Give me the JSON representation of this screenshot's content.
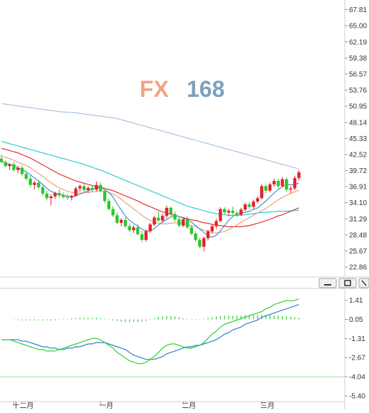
{
  "watermark": {
    "brand_letters": "FX",
    "brand_digits": "168"
  },
  "chart_data": [
    {
      "type": "candlestick",
      "panel": "price",
      "yaxis_side": "right",
      "ylim": [
        21.5,
        69.0
      ],
      "yticks": [
        "67.81",
        "65.00",
        "62.19",
        "59.38",
        "56.57",
        "53.76",
        "50.95",
        "48.14",
        "45.33",
        "42.52",
        "39.72",
        "36.91",
        "34.10",
        "31.29",
        "28.48",
        "25.67",
        "22.86"
      ],
      "colors": {
        "up": "#e8202a",
        "down": "#2ec531",
        "ma5": "#3f88c8",
        "ma10": "#e0a070",
        "ma20": "#e02020",
        "ma60": "#20c8c8",
        "ma120": "#a0c0e0"
      },
      "candles": [
        [
          41.8,
          42.5,
          41.0,
          41.2
        ],
        [
          41.2,
          41.6,
          40.3,
          40.5
        ],
        [
          40.5,
          41.0,
          39.8,
          40.8
        ],
        [
          40.8,
          41.2,
          39.5,
          39.8
        ],
        [
          39.8,
          40.5,
          39.2,
          40.2
        ],
        [
          40.2,
          40.6,
          38.8,
          39.1
        ],
        [
          39.1,
          39.6,
          38.0,
          38.3
        ],
        [
          38.3,
          38.9,
          36.8,
          37.2
        ],
        [
          37.2,
          37.9,
          36.4,
          37.6
        ],
        [
          37.6,
          38.0,
          36.5,
          36.8
        ],
        [
          36.8,
          37.3,
          35.3,
          35.7
        ],
        [
          35.7,
          36.2,
          34.5,
          34.9
        ],
        [
          34.9,
          35.6,
          33.6,
          35.2
        ],
        [
          35.2,
          36.0,
          34.8,
          35.8
        ],
        [
          35.8,
          36.4,
          35.0,
          35.4
        ],
        [
          35.4,
          35.9,
          34.8,
          35.1
        ],
        [
          35.1,
          35.6,
          34.6,
          35.0
        ],
        [
          35.0,
          35.5,
          34.5,
          35.3
        ],
        [
          35.3,
          36.9,
          35.1,
          36.6
        ],
        [
          36.6,
          37.3,
          36.1,
          37.0
        ],
        [
          37.0,
          37.6,
          36.0,
          36.3
        ],
        [
          36.3,
          37.0,
          35.8,
          36.7
        ],
        [
          36.7,
          37.2,
          36.0,
          36.4
        ],
        [
          36.4,
          37.8,
          36.1,
          37.2
        ],
        [
          37.2,
          37.6,
          35.9,
          36.1
        ],
        [
          36.1,
          36.5,
          34.0,
          34.4
        ],
        [
          34.4,
          34.8,
          32.7,
          33.0
        ],
        [
          33.0,
          33.5,
          31.6,
          31.9
        ],
        [
          31.9,
          32.4,
          30.3,
          30.6
        ],
        [
          30.6,
          31.4,
          30.0,
          31.1
        ],
        [
          31.1,
          31.6,
          29.7,
          30.0
        ],
        [
          30.0,
          30.5,
          29.0,
          29.3
        ],
        [
          29.3,
          30.2,
          28.8,
          29.8
        ],
        [
          29.8,
          30.3,
          28.3,
          28.6
        ],
        [
          28.6,
          29.2,
          27.2,
          27.6
        ],
        [
          27.6,
          29.5,
          27.3,
          29.1
        ],
        [
          29.1,
          30.6,
          28.8,
          30.3
        ],
        [
          30.3,
          31.8,
          30.0,
          31.5
        ],
        [
          31.5,
          32.6,
          30.8,
          31.0
        ],
        [
          31.0,
          32.2,
          30.6,
          31.8
        ],
        [
          31.8,
          33.6,
          31.4,
          33.2
        ],
        [
          33.2,
          33.5,
          31.8,
          32.1
        ],
        [
          32.1,
          32.6,
          30.8,
          31.2
        ],
        [
          31.2,
          31.6,
          29.8,
          30.1
        ],
        [
          30.1,
          31.5,
          29.8,
          31.2
        ],
        [
          31.2,
          31.7,
          29.5,
          29.8
        ],
        [
          29.8,
          30.2,
          28.4,
          28.7
        ],
        [
          28.7,
          29.1,
          27.3,
          27.6
        ],
        [
          27.6,
          28.0,
          26.1,
          26.4
        ],
        [
          26.4,
          28.2,
          25.6,
          27.9
        ],
        [
          27.9,
          29.4,
          27.5,
          29.1
        ],
        [
          29.1,
          30.3,
          28.7,
          30.0
        ],
        [
          30.0,
          31.3,
          29.5,
          30.9
        ],
        [
          30.9,
          33.3,
          30.7,
          33.0
        ],
        [
          33.0,
          33.3,
          32.1,
          32.4
        ],
        [
          32.4,
          33.0,
          31.7,
          32.7
        ],
        [
          32.7,
          33.4,
          32.0,
          32.3
        ],
        [
          32.3,
          32.7,
          31.6,
          32.0
        ],
        [
          32.0,
          33.2,
          31.8,
          32.9
        ],
        [
          32.9,
          34.1,
          32.6,
          33.8
        ],
        [
          33.8,
          34.2,
          33.0,
          33.4
        ],
        [
          33.4,
          34.6,
          33.0,
          34.3
        ],
        [
          34.3,
          35.2,
          34.0,
          34.9
        ],
        [
          34.9,
          37.3,
          34.7,
          37.0
        ],
        [
          37.0,
          37.3,
          35.8,
          36.2
        ],
        [
          36.2,
          37.6,
          35.9,
          37.3
        ],
        [
          37.3,
          38.3,
          36.9,
          37.9
        ],
        [
          37.9,
          38.3,
          36.6,
          37.0
        ],
        [
          37.0,
          38.6,
          36.8,
          38.2
        ],
        [
          38.2,
          38.5,
          36.0,
          36.4
        ],
        [
          36.4,
          37.0,
          35.7,
          36.6
        ],
        [
          36.6,
          38.8,
          36.3,
          38.4
        ],
        [
          38.4,
          39.8,
          38.0,
          39.4
        ]
      ],
      "ma_lines": {
        "ma5": [
          41.4,
          41.0,
          40.8,
          40.6,
          40.2,
          39.9,
          39.5,
          39.0,
          38.4,
          37.9,
          37.3,
          36.6,
          36.1,
          35.8,
          35.5,
          35.4,
          35.2,
          35.1,
          35.3,
          35.6,
          35.9,
          36.2,
          36.4,
          36.7,
          36.8,
          36.4,
          35.9,
          35.1,
          33.9,
          32.8,
          31.8,
          31.0,
          30.5,
          30.0,
          29.5,
          29.1,
          29.2,
          29.6,
          30.2,
          30.7,
          31.2,
          31.6,
          31.9,
          31.7,
          31.4,
          31.1,
          30.7,
          30.1,
          29.5,
          28.9,
          28.3,
          28.1,
          28.4,
          29.2,
          30.1,
          31.0,
          31.7,
          32.1,
          32.3,
          32.4,
          32.6,
          32.9,
          33.2,
          33.8,
          34.4,
          35.1,
          35.8,
          36.4,
          36.9,
          37.3,
          37.2,
          37.3,
          37.5
        ],
        "ma10": [
          42.2,
          42.0,
          41.8,
          41.5,
          41.2,
          40.9,
          40.6,
          40.2,
          39.7,
          39.2,
          38.7,
          38.1,
          37.6,
          37.1,
          36.7,
          36.4,
          36.1,
          35.9,
          35.8,
          35.8,
          35.8,
          35.9,
          36.0,
          36.1,
          36.2,
          36.1,
          35.9,
          35.6,
          35.2,
          34.7,
          34.1,
          33.6,
          33.0,
          32.5,
          31.9,
          31.4,
          31.0,
          30.7,
          30.5,
          30.4,
          30.4,
          30.5,
          30.6,
          30.6,
          30.5,
          30.3,
          30.1,
          29.9,
          29.6,
          29.3,
          29.1,
          28.9,
          28.8,
          28.9,
          29.1,
          29.4,
          29.8,
          30.2,
          30.7,
          31.1,
          31.5,
          31.9,
          32.3,
          32.7,
          33.1,
          33.6,
          34.1,
          34.6,
          35.0,
          35.4,
          35.7,
          36.0,
          36.3
        ],
        "ma20": [
          43.6,
          43.4,
          43.2,
          43.0,
          42.8,
          42.5,
          42.2,
          41.9,
          41.5,
          41.1,
          40.7,
          40.3,
          39.9,
          39.5,
          39.1,
          38.8,
          38.5,
          38.2,
          37.9,
          37.7,
          37.5,
          37.3,
          37.1,
          36.9,
          36.8,
          36.6,
          36.4,
          36.2,
          35.9,
          35.6,
          35.3,
          35.0,
          34.7,
          34.4,
          34.0,
          33.7,
          33.4,
          33.1,
          32.8,
          32.5,
          32.3,
          32.1,
          31.9,
          31.7,
          31.5,
          31.3,
          31.1,
          31.0,
          30.8,
          30.6,
          30.5,
          30.3,
          30.2,
          30.1,
          30.0,
          29.9,
          29.9,
          29.9,
          29.9,
          30.0,
          30.1,
          30.3,
          30.5,
          30.7,
          31.0,
          31.2,
          31.5,
          31.8,
          32.0,
          32.3,
          32.6,
          32.9,
          33.2
        ],
        "ma60": [
          44.8,
          44.6,
          44.4,
          44.2,
          44.0,
          43.8,
          43.6,
          43.4,
          43.2,
          43.0,
          42.8,
          42.6,
          42.4,
          42.2,
          42.0,
          41.8,
          41.6,
          41.4,
          41.2,
          41.0,
          40.8,
          40.5,
          40.3,
          40.0,
          39.8,
          39.5,
          39.2,
          38.9,
          38.6,
          38.3,
          38.0,
          37.7,
          37.4,
          37.1,
          36.8,
          36.5,
          36.2,
          35.9,
          35.6,
          35.3,
          35.0,
          34.7,
          34.4,
          34.1,
          33.8,
          33.5,
          33.3,
          33.1,
          32.9,
          32.7,
          32.5,
          32.3,
          32.2,
          32.1,
          32.0,
          31.9,
          31.9,
          31.9,
          31.9,
          32.0,
          32.1,
          32.2,
          32.3,
          32.4,
          32.4,
          32.5,
          32.5,
          32.6,
          32.6,
          32.6,
          32.7,
          32.7,
          32.8
        ],
        "ma120": [
          51.4,
          51.3,
          51.2,
          51.1,
          51.0,
          50.9,
          50.8,
          50.7,
          50.6,
          50.5,
          50.4,
          50.3,
          50.2,
          50.1,
          50.0,
          49.95,
          49.9,
          49.85,
          49.8,
          49.7,
          49.6,
          49.5,
          49.4,
          49.3,
          49.2,
          49.1,
          49.0,
          48.9,
          48.8,
          48.6,
          48.4,
          48.2,
          48.0,
          47.8,
          47.6,
          47.4,
          47.2,
          47.0,
          46.8,
          46.6,
          46.4,
          46.2,
          46.0,
          45.8,
          45.6,
          45.4,
          45.2,
          45.0,
          44.8,
          44.6,
          44.4,
          44.2,
          44.0,
          43.8,
          43.6,
          43.4,
          43.2,
          43.0,
          42.8,
          42.6,
          42.4,
          42.2,
          42.0,
          41.8,
          41.6,
          41.4,
          41.2,
          41.0,
          40.8,
          40.6,
          40.4,
          40.2,
          40.0
        ]
      }
    },
    {
      "type": "macd",
      "panel": "indicator",
      "yaxis_side": "right",
      "ylim": [
        -5.7,
        2.1
      ],
      "yticks": [
        "1.41",
        "0.05",
        "-1.31",
        "-2.67",
        "-4.04",
        "-5.40"
      ],
      "reference_line": -4.04,
      "colors": {
        "dif": "#30d030",
        "dea": "#3080d0",
        "hist_pos": "#e02020",
        "hist_neg": "#30c030",
        "ref": "#a0e0a0"
      },
      "dif": [
        -1.4,
        -1.4,
        -1.4,
        -1.5,
        -1.6,
        -1.7,
        -1.8,
        -1.9,
        -2.0,
        -2.1,
        -2.1,
        -2.2,
        -2.2,
        -2.2,
        -2.1,
        -2.0,
        -1.9,
        -1.8,
        -1.7,
        -1.6,
        -1.5,
        -1.4,
        -1.3,
        -1.3,
        -1.4,
        -1.6,
        -1.8,
        -2.0,
        -2.3,
        -2.5,
        -2.7,
        -2.9,
        -3.0,
        -3.1,
        -3.1,
        -3.0,
        -2.8,
        -2.6,
        -2.3,
        -2.0,
        -1.8,
        -1.7,
        -1.7,
        -1.8,
        -1.9,
        -2.0,
        -2.0,
        -1.9,
        -1.8,
        -1.6,
        -1.3,
        -1.0,
        -0.8,
        -0.5,
        -0.3,
        -0.2,
        -0.1,
        0.0,
        0.1,
        0.2,
        0.3,
        0.4,
        0.5,
        0.6,
        0.8,
        0.9,
        1.1,
        1.2,
        1.3,
        1.4,
        1.35,
        1.4,
        1.5
      ],
      "dea": [
        -1.4,
        -1.4,
        -1.4,
        -1.4,
        -1.4,
        -1.5,
        -1.5,
        -1.6,
        -1.7,
        -1.8,
        -1.9,
        -1.9,
        -2.0,
        -2.0,
        -2.1,
        -2.1,
        -2.0,
        -2.0,
        -1.9,
        -1.9,
        -1.8,
        -1.7,
        -1.7,
        -1.6,
        -1.6,
        -1.6,
        -1.7,
        -1.8,
        -1.9,
        -2.0,
        -2.1,
        -2.3,
        -2.5,
        -2.6,
        -2.7,
        -2.8,
        -2.8,
        -2.8,
        -2.7,
        -2.6,
        -2.4,
        -2.3,
        -2.2,
        -2.1,
        -2.0,
        -1.9,
        -1.9,
        -1.8,
        -1.8,
        -1.7,
        -1.6,
        -1.5,
        -1.4,
        -1.2,
        -1.0,
        -0.9,
        -0.7,
        -0.6,
        -0.5,
        -0.3,
        -0.2,
        -0.1,
        0.0,
        0.2,
        0.3,
        0.4,
        0.5,
        0.6,
        0.7,
        0.8,
        0.9,
        1.0,
        1.1
      ],
      "histogram": [
        0.0,
        0.0,
        0.0,
        -0.1,
        -0.1,
        -0.2,
        -0.2,
        -0.2,
        -0.2,
        -0.2,
        -0.2,
        -0.2,
        -0.2,
        -0.2,
        -0.1,
        0.1,
        0.1,
        0.2,
        0.2,
        0.3,
        0.3,
        0.3,
        0.3,
        0.3,
        0.2,
        0.1,
        -0.1,
        -0.2,
        -0.3,
        -0.4,
        -0.5,
        -0.5,
        -0.5,
        -0.5,
        -0.4,
        -0.3,
        -0.1,
        0.2,
        0.4,
        0.5,
        0.6,
        0.6,
        0.5,
        0.4,
        0.2,
        0.1,
        -0.1,
        -0.1,
        -0.1,
        0.1,
        0.3,
        0.4,
        0.5,
        0.6,
        0.7,
        0.7,
        0.7,
        0.7,
        0.7,
        0.8,
        0.8,
        0.8,
        0.8,
        0.8,
        0.8,
        0.8,
        0.7,
        0.7,
        0.6,
        0.6,
        0.5,
        0.4,
        0.3
      ]
    }
  ],
  "xaxis": {
    "labels": [
      {
        "text": "十二月",
        "index": 3
      },
      {
        "text": "一月",
        "index": 24
      },
      {
        "text": "二月",
        "index": 44
      },
      {
        "text": "三月",
        "index": 63
      }
    ]
  },
  "window_controls": {
    "minimize_icon": "minimize-icon",
    "restore_icon": "restore-icon",
    "close_icon": "close-icon"
  }
}
